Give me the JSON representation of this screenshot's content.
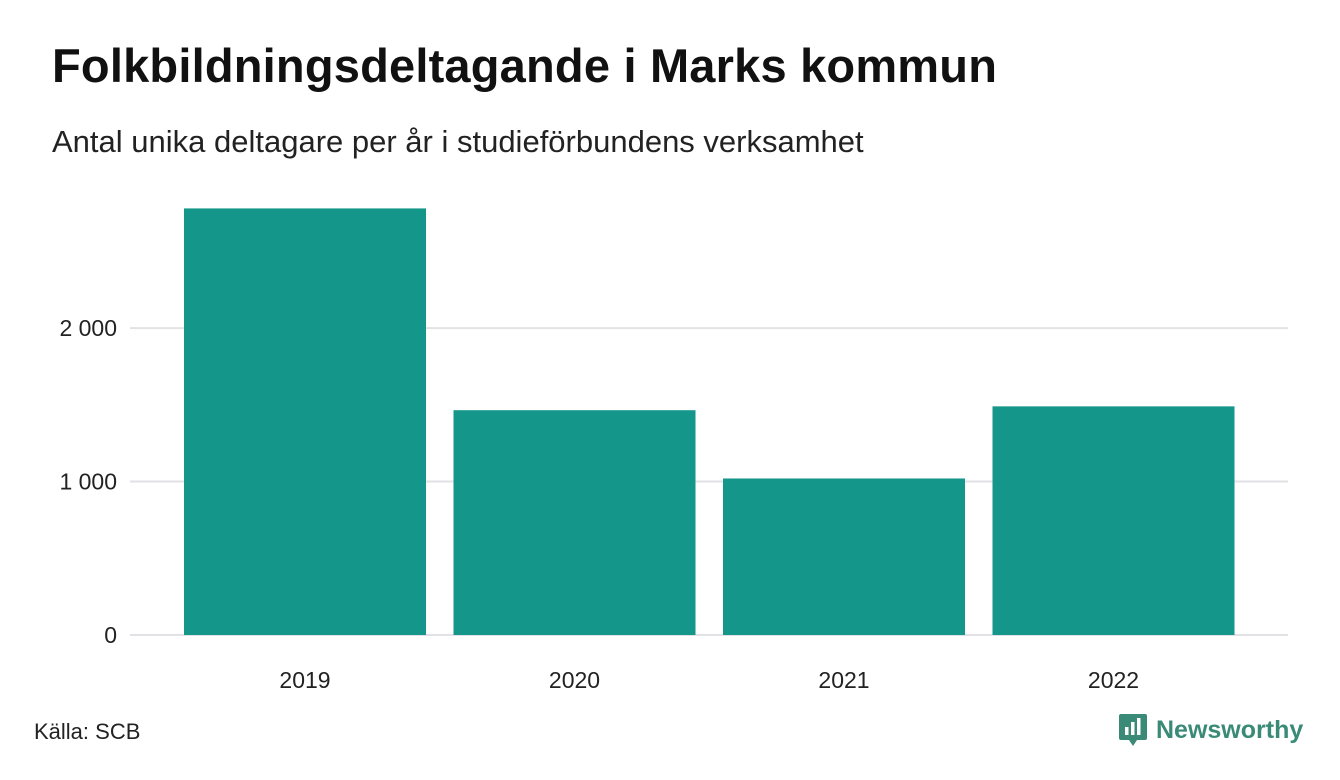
{
  "title": "Folkbildningsdeltagande i Marks kommun",
  "subtitle": "Antal unika deltagare per år i studieförbundens verksamhet",
  "source": "Källa: SCB",
  "brand": {
    "name": "Newsworthy",
    "icon": "newsworthy-logo-icon",
    "color": "#3a8a78"
  },
  "colors": {
    "bar": "#14968a",
    "grid": "#e2e2e6",
    "text": "#222222"
  },
  "chart_data": {
    "type": "bar",
    "title": "Folkbildningsdeltagande i Marks kommun",
    "subtitle": "Antal unika deltagare per år i studieförbundens verksamhet",
    "xlabel": "",
    "ylabel": "",
    "categories": [
      "2019",
      "2020",
      "2021",
      "2022"
    ],
    "values": [
      2780,
      1465,
      1020,
      1490
    ],
    "ylim": [
      0,
      2900
    ],
    "yticks": [
      0,
      1000,
      2000
    ],
    "ytick_labels": [
      "0",
      "1 000",
      "2 000"
    ],
    "grid": true,
    "legend": "none"
  }
}
